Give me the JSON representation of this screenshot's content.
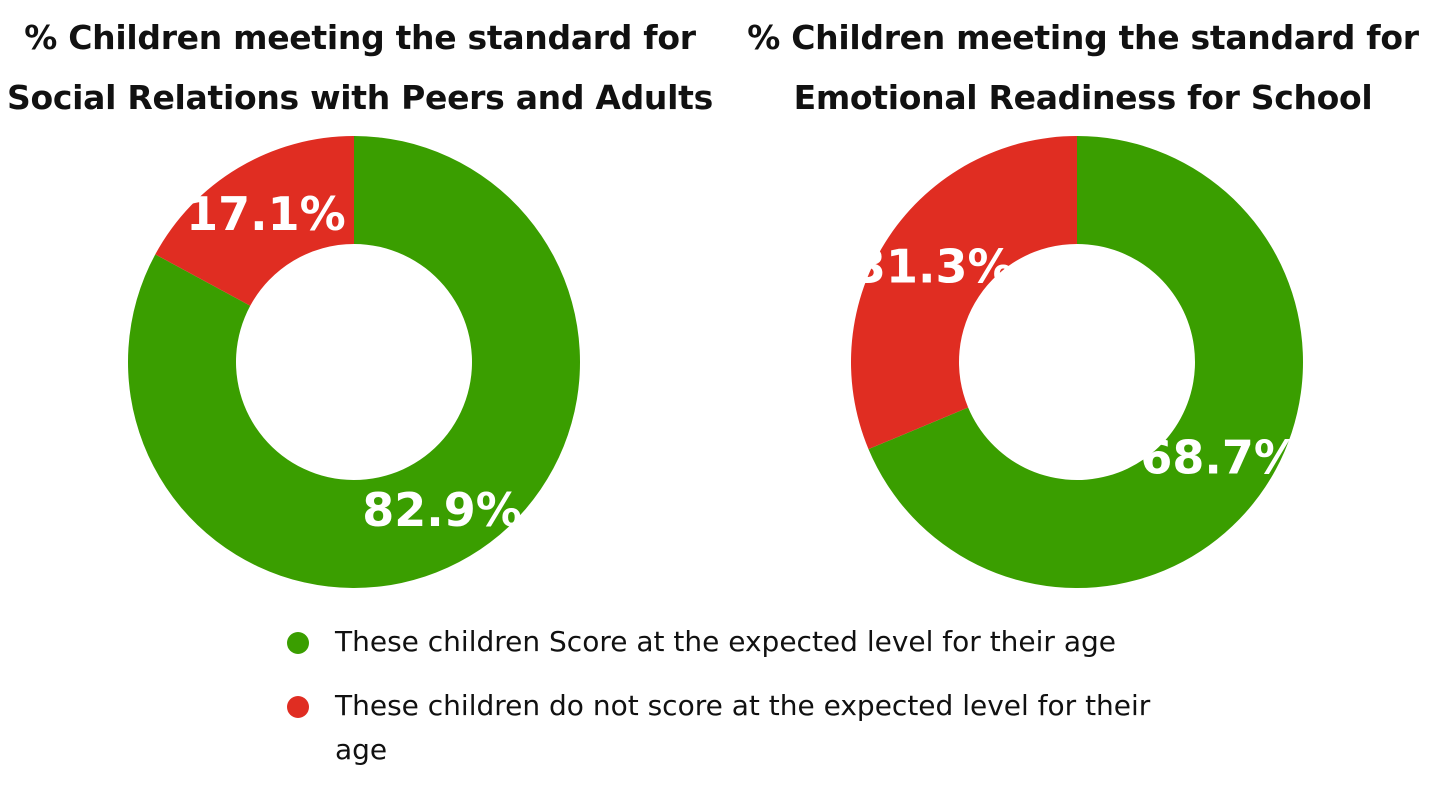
{
  "colors": {
    "meets": "#3a9e00",
    "not_meets": "#e02d22"
  },
  "chart_data": [
    {
      "type": "pie",
      "title_lines": [
        "% Children meeting the standard for",
        "Social Relations with Peers and Adults"
      ],
      "slices": [
        {
          "key": "meets",
          "value": 82.9,
          "label": "82.9%"
        },
        {
          "key": "not_meets",
          "value": 17.1,
          "label": "17.1%"
        }
      ]
    },
    {
      "type": "pie",
      "title_lines": [
        "% Children meeting the standard for",
        "Emotional Readiness for School"
      ],
      "slices": [
        {
          "key": "meets",
          "value": 68.7,
          "label": "68.7%"
        },
        {
          "key": "not_meets",
          "value": 31.3,
          "label": "31.3%"
        }
      ]
    }
  ],
  "legend": [
    {
      "key": "meets",
      "label": "These children Score at the expected level for their age"
    },
    {
      "key": "not_meets",
      "label": "These children do not score at the expected level for their age"
    }
  ]
}
